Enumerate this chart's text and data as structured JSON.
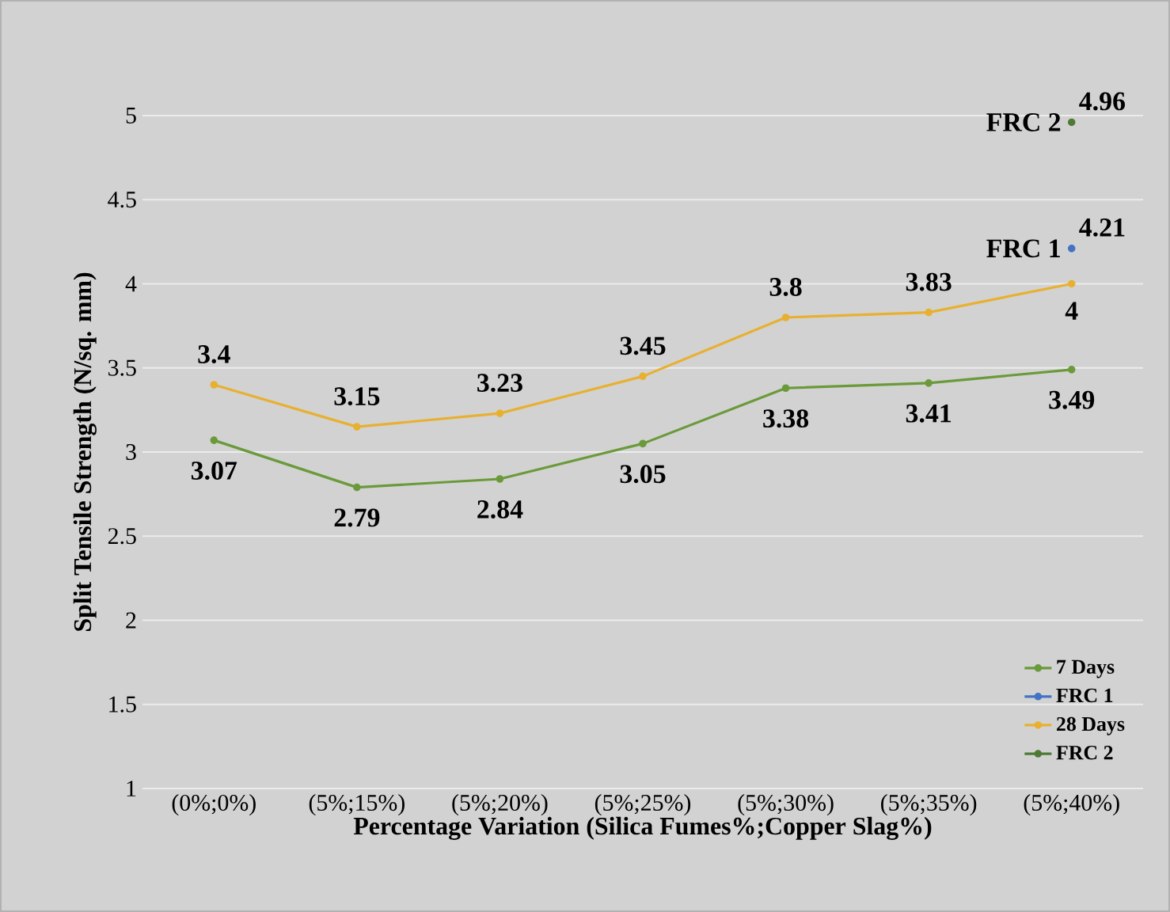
{
  "chart_data": {
    "type": "line",
    "xlabel": "Percentage Variation (Silica Fumes%;Copper Slag%)",
    "ylabel": "Split Tensile Strength (N/sq. mm)",
    "categories": [
      "(0%;0%)",
      "(5%;15%)",
      "(5%;20%)",
      "(5%;25%)",
      "(5%;30%)",
      "(5%;35%)",
      "(5%;40%)"
    ],
    "series": [
      {
        "name": "7 Days",
        "color": "#6a9a3a",
        "values": [
          3.07,
          2.79,
          2.84,
          3.05,
          3.38,
          3.41,
          3.49
        ]
      },
      {
        "name": "FRC 1",
        "color": "#4472c4",
        "values": [
          null,
          null,
          null,
          null,
          null,
          null,
          4.21
        ]
      },
      {
        "name": "28 Days",
        "color": "#e8b030",
        "values": [
          3.4,
          3.15,
          3.23,
          3.45,
          3.8,
          3.83,
          4
        ]
      },
      {
        "name": "FRC 2",
        "color": "#4f7a34",
        "values": [
          null,
          null,
          null,
          null,
          null,
          null,
          4.96
        ]
      }
    ],
    "ylim": [
      1,
      5
    ],
    "yticks": [
      1,
      1.5,
      2,
      2.5,
      3,
      3.5,
      4,
      4.5,
      5
    ],
    "grid": "y",
    "legend": "bottom right",
    "data_labels": true,
    "marker": "circle",
    "line_style": "solid"
  }
}
